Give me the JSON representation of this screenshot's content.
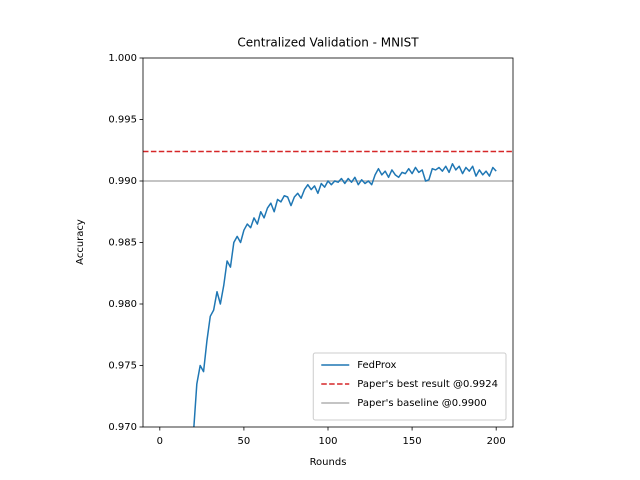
{
  "chart_data": {
    "type": "line",
    "title": "Centralized Validation - MNIST",
    "xlabel": "Rounds",
    "ylabel": "Accuracy",
    "x": [
      20,
      22,
      24,
      26,
      28,
      30,
      32,
      34,
      36,
      38,
      40,
      42,
      44,
      46,
      48,
      50,
      52,
      54,
      56,
      58,
      60,
      62,
      64,
      66,
      68,
      70,
      72,
      74,
      76,
      78,
      80,
      82,
      84,
      86,
      88,
      90,
      92,
      94,
      96,
      98,
      100,
      102,
      104,
      106,
      108,
      110,
      112,
      114,
      116,
      118,
      120,
      122,
      124,
      126,
      128,
      130,
      132,
      134,
      136,
      138,
      140,
      142,
      144,
      146,
      148,
      150,
      152,
      154,
      156,
      158,
      160,
      162,
      164,
      166,
      168,
      170,
      172,
      174,
      176,
      178,
      180,
      182,
      184,
      186,
      188,
      190,
      192,
      194,
      196,
      198,
      200
    ],
    "series": [
      {
        "name": "FedProx",
        "color": "#1f77b4",
        "values": [
          0.9695,
          0.9735,
          0.975,
          0.9745,
          0.977,
          0.979,
          0.9795,
          0.981,
          0.98,
          0.9815,
          0.9835,
          0.983,
          0.985,
          0.9855,
          0.985,
          0.986,
          0.9865,
          0.9862,
          0.987,
          0.9865,
          0.9875,
          0.987,
          0.9878,
          0.9882,
          0.9875,
          0.9885,
          0.9883,
          0.9888,
          0.9887,
          0.988,
          0.9887,
          0.989,
          0.9886,
          0.9893,
          0.9897,
          0.9893,
          0.9896,
          0.989,
          0.9898,
          0.9895,
          0.99,
          0.9897,
          0.99,
          0.9899,
          0.9902,
          0.9898,
          0.9902,
          0.9899,
          0.9903,
          0.9897,
          0.9901,
          0.9898,
          0.99,
          0.9897,
          0.9905,
          0.991,
          0.9905,
          0.9908,
          0.9903,
          0.9909,
          0.9905,
          0.9903,
          0.9907,
          0.9906,
          0.991,
          0.9906,
          0.9911,
          0.9907,
          0.9909,
          0.99,
          0.9901,
          0.991,
          0.9909,
          0.9911,
          0.9908,
          0.9912,
          0.9907,
          0.9914,
          0.9909,
          0.9912,
          0.9906,
          0.9911,
          0.9908,
          0.9912,
          0.9904,
          0.9909,
          0.9905,
          0.9908,
          0.9904,
          0.9911,
          0.9908
        ]
      }
    ],
    "hlines": [
      {
        "name": "Paper's best result @0.9924",
        "value": 0.9924,
        "color": "#d62728",
        "style": "dashed"
      },
      {
        "name": "Paper's baseline @0.9900",
        "value": 0.99,
        "color": "#b0b0b0",
        "style": "solid"
      }
    ],
    "xlim": [
      -10,
      210
    ],
    "ylim": [
      0.97,
      1.0
    ],
    "xticks": [
      0,
      50,
      100,
      150,
      200
    ],
    "yticks": [
      {
        "value": 0.97,
        "label": "0.970"
      },
      {
        "value": 0.975,
        "label": "0.975"
      },
      {
        "value": 0.98,
        "label": "0.980"
      },
      {
        "value": 0.985,
        "label": "0.985"
      },
      {
        "value": 0.99,
        "label": "0.990"
      },
      {
        "value": 0.995,
        "label": "0.995"
      },
      {
        "value": 1.0,
        "label": "1.000"
      }
    ],
    "legend": "lower right"
  }
}
